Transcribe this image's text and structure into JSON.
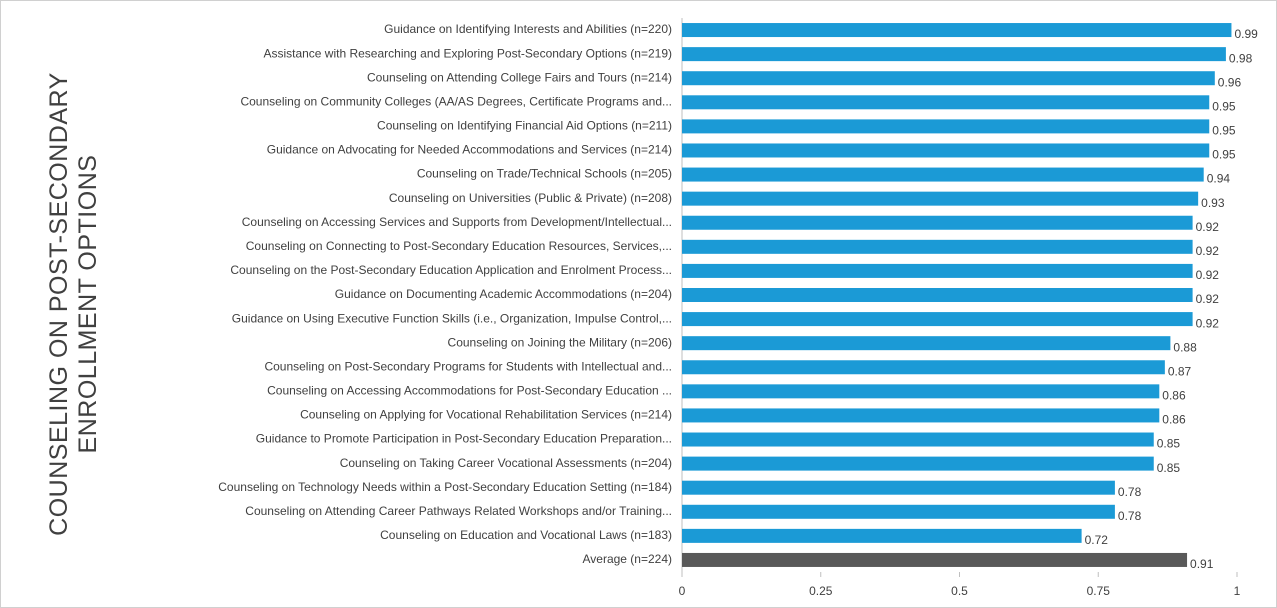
{
  "chart_data": {
    "type": "bar",
    "orientation": "horizontal",
    "title": "COUNSELING ON POST-SECONDARY ENROLLMENT OPTIONS",
    "categories": [
      "Guidance on Identifying Interests and Abilities (n=220)",
      "Assistance with Researching and Exploring Post-Secondary Options (n=219)",
      "Counseling on Attending College Fairs and Tours (n=214)",
      "Counseling on Community Colleges (AA/AS Degrees, Certificate Programs and...",
      "Counseling on Identifying Financial Aid Options (n=211)",
      "Guidance on Advocating for Needed Accommodations and Services (n=214)",
      "Counseling on Trade/Technical Schools (n=205)",
      "Counseling on Universities (Public & Private) (n=208)",
      "Counseling on Accessing Services and Supports from Development/Intellectual...",
      "Counseling on Connecting to Post-Secondary Education Resources, Services,...",
      "Counseling on the Post-Secondary Education Application and Enrolment Process...",
      "Guidance on Documenting Academic Accommodations (n=204)",
      "Guidance on Using Executive Function Skills (i.e., Organization, Impulse Control,...",
      "Counseling on Joining the Military (n=206)",
      "Counseling on Post-Secondary Programs for Students with Intellectual and...",
      "Counseling on Accessing Accommodations for Post-Secondary Education ...",
      "Counseling on Applying for Vocational Rehabilitation Services (n=214)",
      "Guidance to Promote Participation in Post-Secondary Education Preparation...",
      "Counseling on Taking Career Vocational Assessments (n=204)",
      "Counseling on Technology Needs within a Post-Secondary Education Setting (n=184)",
      "Counseling on Attending Career Pathways Related Workshops and/or Training...",
      "Counseling on Education and Vocational Laws (n=183)",
      "Average (n=224)"
    ],
    "values": [
      0.99,
      0.98,
      0.96,
      0.95,
      0.95,
      0.95,
      0.94,
      0.93,
      0.92,
      0.92,
      0.92,
      0.92,
      0.92,
      0.88,
      0.87,
      0.86,
      0.86,
      0.85,
      0.85,
      0.78,
      0.78,
      0.72,
      0.91
    ],
    "colors": [
      "#1b9ad6",
      "#1b9ad6",
      "#1b9ad6",
      "#1b9ad6",
      "#1b9ad6",
      "#1b9ad6",
      "#1b9ad6",
      "#1b9ad6",
      "#1b9ad6",
      "#1b9ad6",
      "#1b9ad6",
      "#1b9ad6",
      "#1b9ad6",
      "#1b9ad6",
      "#1b9ad6",
      "#1b9ad6",
      "#1b9ad6",
      "#1b9ad6",
      "#1b9ad6",
      "#1b9ad6",
      "#1b9ad6",
      "#1b9ad6",
      "#595959"
    ],
    "xlim": [
      0,
      1
    ],
    "xticks": [
      0,
      0.25,
      0.5,
      0.75,
      1
    ],
    "grid": false
  }
}
